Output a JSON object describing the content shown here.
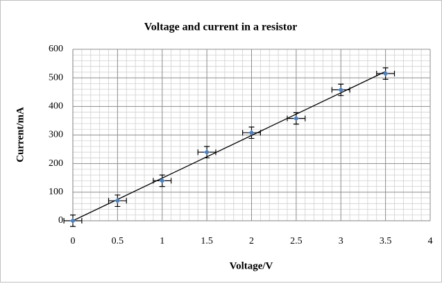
{
  "chart_data": {
    "type": "scatter",
    "title": "Voltage and current in a resistor",
    "xlabel": "Voltage/V",
    "ylabel": "Current/mA",
    "x": [
      0,
      0.5,
      1,
      1.5,
      2,
      2.5,
      3,
      3.5
    ],
    "values": [
      0,
      70,
      140,
      240,
      308,
      358,
      458,
      515
    ],
    "yerr": [
      20,
      20,
      20,
      20,
      20,
      20,
      20,
      20
    ],
    "xerr": [
      0.1,
      0.1,
      0.1,
      0.1,
      0.1,
      0.1,
      0.1,
      0.1
    ],
    "color": "#4f81bd",
    "trendline": "linear",
    "xlim": [
      0,
      4
    ],
    "xticks": [
      0,
      0.5,
      1,
      1.5,
      2,
      2.5,
      3,
      3.5,
      4
    ],
    "ylim": [
      0,
      600
    ],
    "yticks": [
      0,
      100,
      200,
      300,
      400,
      500,
      600
    ],
    "grid": true,
    "minor_grid": true
  }
}
